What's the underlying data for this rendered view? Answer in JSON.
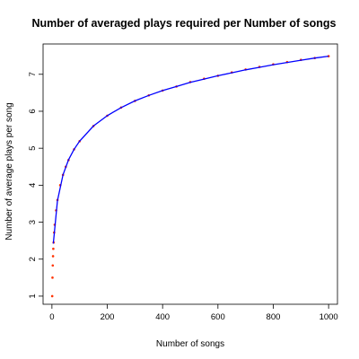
{
  "chart_data": {
    "type": "scatter",
    "title": "Number of averaged plays required per Number of songs",
    "xlabel": "Number of songs",
    "ylabel": "Number of average plays per song",
    "xlim": [
      -32,
      1032
    ],
    "ylim": [
      0.78,
      7.82
    ],
    "x_ticks": [
      0,
      200,
      400,
      600,
      800,
      1000
    ],
    "y_ticks": [
      1,
      2,
      3,
      4,
      5,
      6,
      7
    ],
    "x_tick_labels": [
      "0",
      "200",
      "400",
      "600",
      "800",
      "1000"
    ],
    "y_tick_labels": [
      "1",
      "2",
      "3",
      "4",
      "5",
      "6",
      "7"
    ],
    "grid": false,
    "series": [
      {
        "kind": "points",
        "color": "#ff3300",
        "x": [
          1,
          2,
          3,
          4,
          5,
          6,
          8,
          10,
          15,
          20,
          30,
          40,
          50,
          60,
          80,
          100,
          150,
          200,
          250,
          300,
          350,
          400,
          450,
          500,
          550,
          600,
          650,
          700,
          750,
          800,
          850,
          900,
          950,
          1000
        ],
        "values": [
          1.0,
          1.5,
          1.83,
          2.08,
          2.28,
          2.45,
          2.72,
          2.93,
          3.32,
          3.6,
          4.0,
          4.28,
          4.5,
          4.68,
          4.97,
          5.19,
          5.6,
          5.88,
          6.1,
          6.28,
          6.43,
          6.56,
          6.67,
          6.79,
          6.88,
          6.96,
          7.05,
          7.13,
          7.2,
          7.27,
          7.33,
          7.39,
          7.44,
          7.49
        ]
      },
      {
        "kind": "fitted-line",
        "color": "#0000ff",
        "x": [
          5,
          20,
          40,
          60,
          80,
          100,
          150,
          200,
          250,
          300,
          350,
          400,
          450,
          500,
          550,
          600,
          650,
          700,
          750,
          800,
          850,
          900,
          950,
          1000
        ],
        "values": [
          2.42,
          3.58,
          4.28,
          4.69,
          4.97,
          5.19,
          5.6,
          5.88,
          6.1,
          6.28,
          6.43,
          6.56,
          6.67,
          6.78,
          6.87,
          6.96,
          7.04,
          7.12,
          7.19,
          7.26,
          7.32,
          7.38,
          7.44,
          7.49
        ]
      }
    ]
  }
}
